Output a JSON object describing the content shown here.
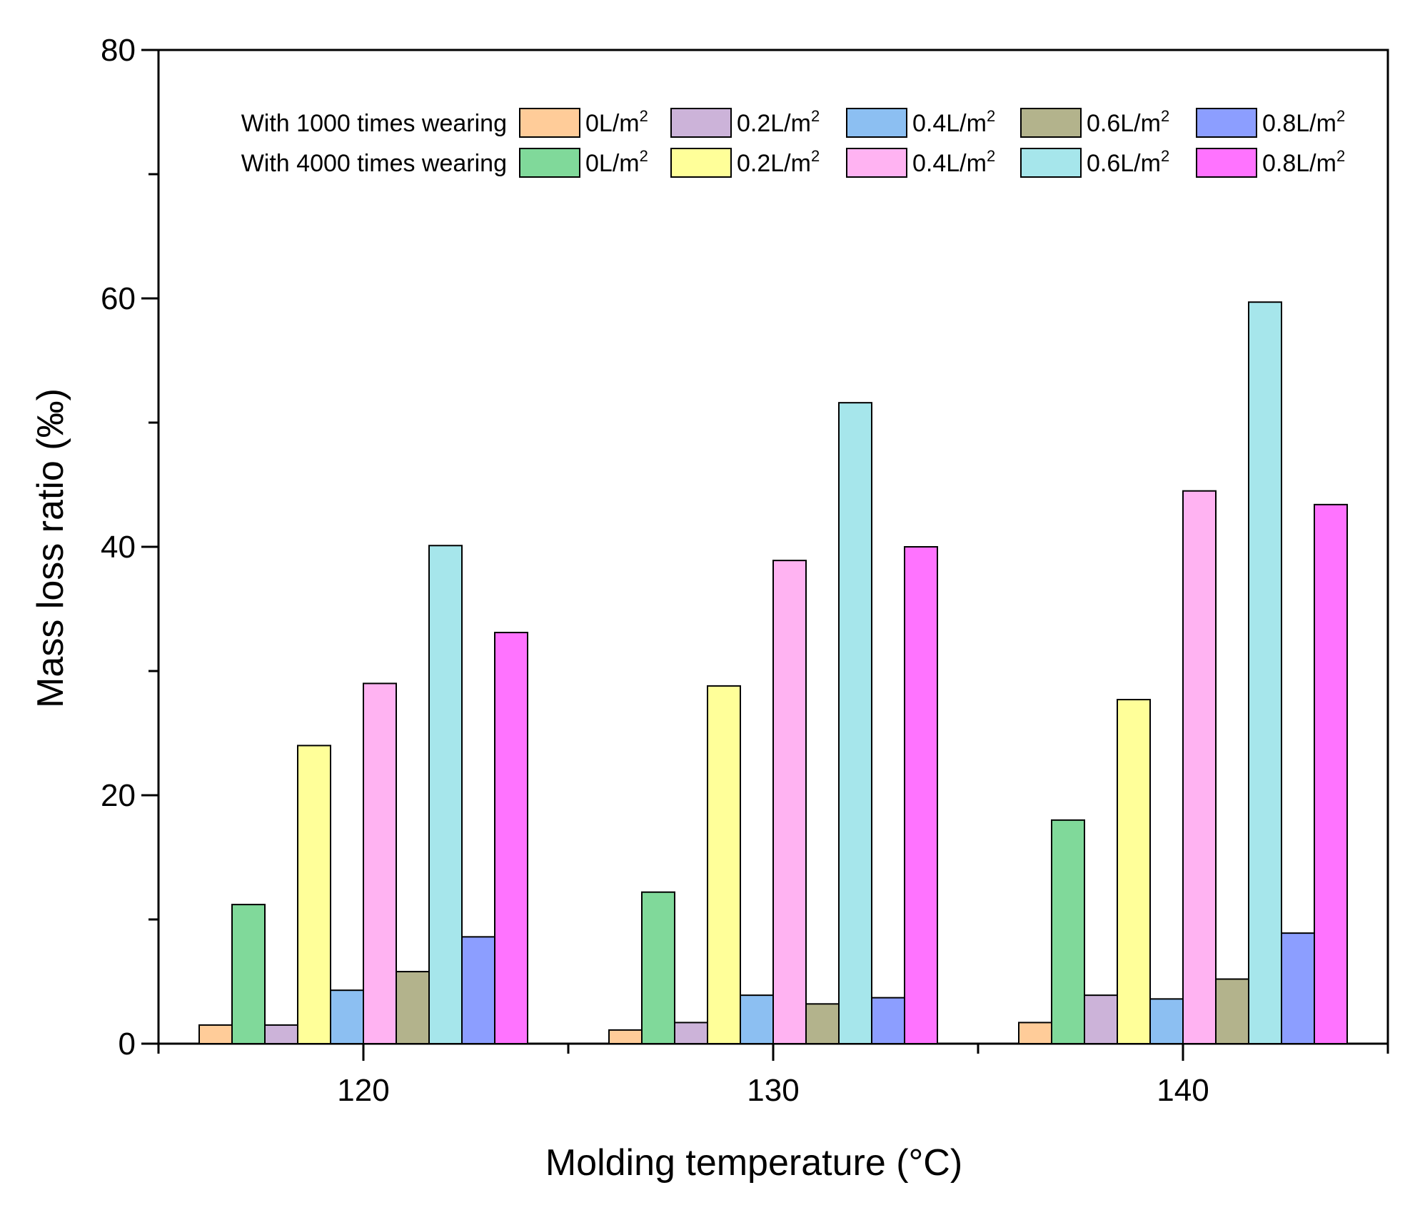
{
  "chart_data": {
    "type": "bar",
    "title": "",
    "xlabel": "Molding temperature (°C)",
    "ylabel": "Mass loss ratio (‰)",
    "ylim": [
      0,
      80
    ],
    "y_ticks": [
      "0",
      "20",
      "40",
      "60",
      "80"
    ],
    "categories": [
      "120",
      "130",
      "140"
    ],
    "legend_groups": [
      "With 1000 times wearing",
      "With 4000 times wearing"
    ],
    "legend_position": "top",
    "series": [
      {
        "name": "0L/m",
        "unit_sup": "2",
        "group": "With 1000 times wearing",
        "color": "#FFCC99",
        "values": [
          1.5,
          1.1,
          1.7
        ]
      },
      {
        "name": "0L/m",
        "unit_sup": "2",
        "group": "With 4000 times wearing",
        "color": "#80D99A",
        "values": [
          11.2,
          12.2,
          18.0
        ]
      },
      {
        "name": "0.2L/m",
        "unit_sup": "2",
        "group": "With 1000 times wearing",
        "color": "#CCB3D9",
        "values": [
          1.5,
          1.7,
          3.9
        ]
      },
      {
        "name": "0.2L/m",
        "unit_sup": "2",
        "group": "With 4000 times wearing",
        "color": "#FFFF99",
        "values": [
          24.0,
          28.8,
          27.7
        ]
      },
      {
        "name": "0.4L/m",
        "unit_sup": "2",
        "group": "With 1000 times wearing",
        "color": "#8CBFF2",
        "values": [
          4.3,
          3.9,
          3.6
        ]
      },
      {
        "name": "0.4L/m",
        "unit_sup": "2",
        "group": "With 4000 times wearing",
        "color": "#FFB3F2",
        "values": [
          29.0,
          38.9,
          44.5
        ]
      },
      {
        "name": "0.6L/m",
        "unit_sup": "2",
        "group": "With 1000 times wearing",
        "color": "#B3B38C",
        "values": [
          5.8,
          3.2,
          5.2
        ]
      },
      {
        "name": "0.6L/m",
        "unit_sup": "2",
        "group": "With 4000 times wearing",
        "color": "#A6E6EB",
        "values": [
          40.1,
          51.6,
          59.7
        ]
      },
      {
        "name": "0.8L/m",
        "unit_sup": "2",
        "group": "With 1000 times wearing",
        "color": "#8C9EFF",
        "values": [
          8.6,
          3.7,
          8.9
        ]
      },
      {
        "name": "0.8L/m",
        "unit_sup": "2",
        "group": "With 4000 times wearing",
        "color": "#FF73FF",
        "values": [
          33.1,
          40.0,
          43.4
        ]
      }
    ]
  }
}
